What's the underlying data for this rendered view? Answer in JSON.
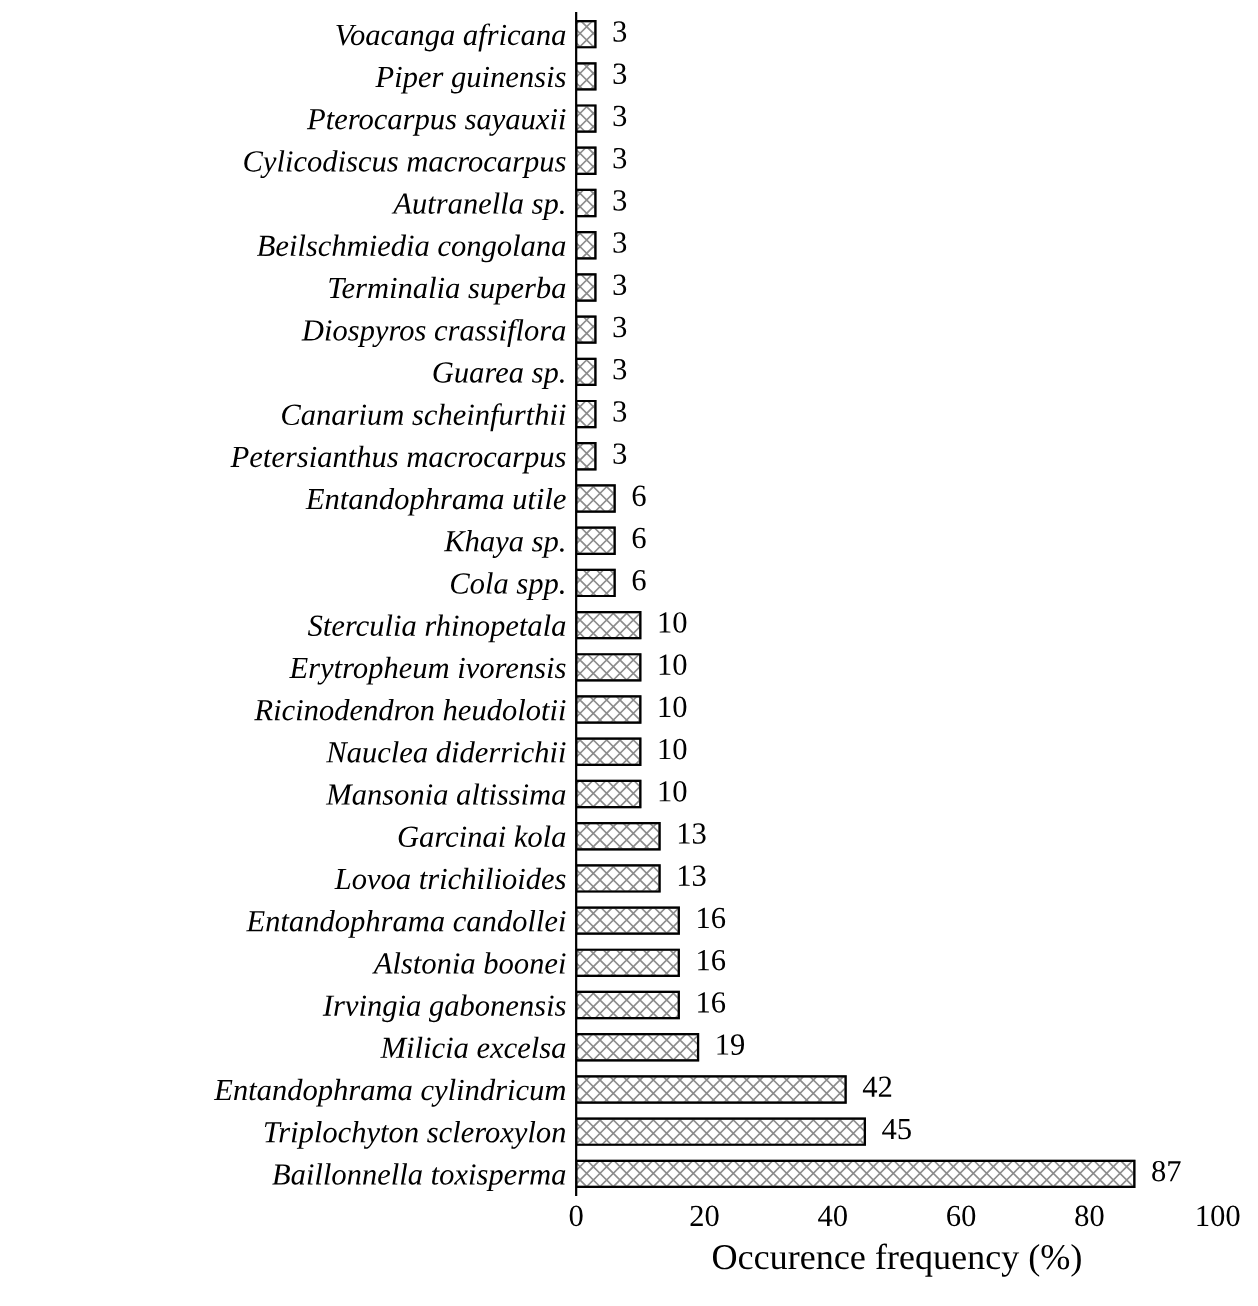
{
  "chart_data": {
    "type": "bar",
    "orientation": "horizontal",
    "xlabel": "Occurence frequency (%)",
    "categories": [
      "Voacanga africana",
      "Piper guinensis",
      "Pterocarpus sayauxii",
      "Cylicodiscus macrocarpus",
      "Autranella sp.",
      "Beilschmiedia congolana",
      "Terminalia superba",
      "Diospyros crassiflora",
      "Guarea sp.",
      "Canarium scheinfurthii",
      "Petersianthus macrocarpus",
      "Entandophrama utile",
      "Khaya sp.",
      "Cola spp.",
      "Sterculia rhinopetala",
      "Erytropheum ivorensis",
      "Ricinodendron heudolotii",
      "Nauclea diderrichii",
      "Mansonia altissima",
      "Garcinai kola",
      "Lovoa trichilioides",
      "Entandophrama candollei",
      "Alstonia boonei",
      "Irvingia gabonensis",
      "Milicia excelsa",
      "Entandophrama cylindricum",
      "Triplochyton scleroxylon",
      "Baillonnella toxisperma"
    ],
    "values": [
      3,
      3,
      3,
      3,
      3,
      3,
      3,
      3,
      3,
      3,
      3,
      6,
      6,
      6,
      10,
      10,
      10,
      10,
      10,
      13,
      13,
      16,
      16,
      16,
      19,
      42,
      45,
      87
    ],
    "color": "#8c8c8c",
    "xlim": [
      0,
      100
    ],
    "xticks": [
      0,
      20,
      40,
      60,
      80,
      100
    ],
    "data_labels": true,
    "grid": false,
    "legend": false
  }
}
